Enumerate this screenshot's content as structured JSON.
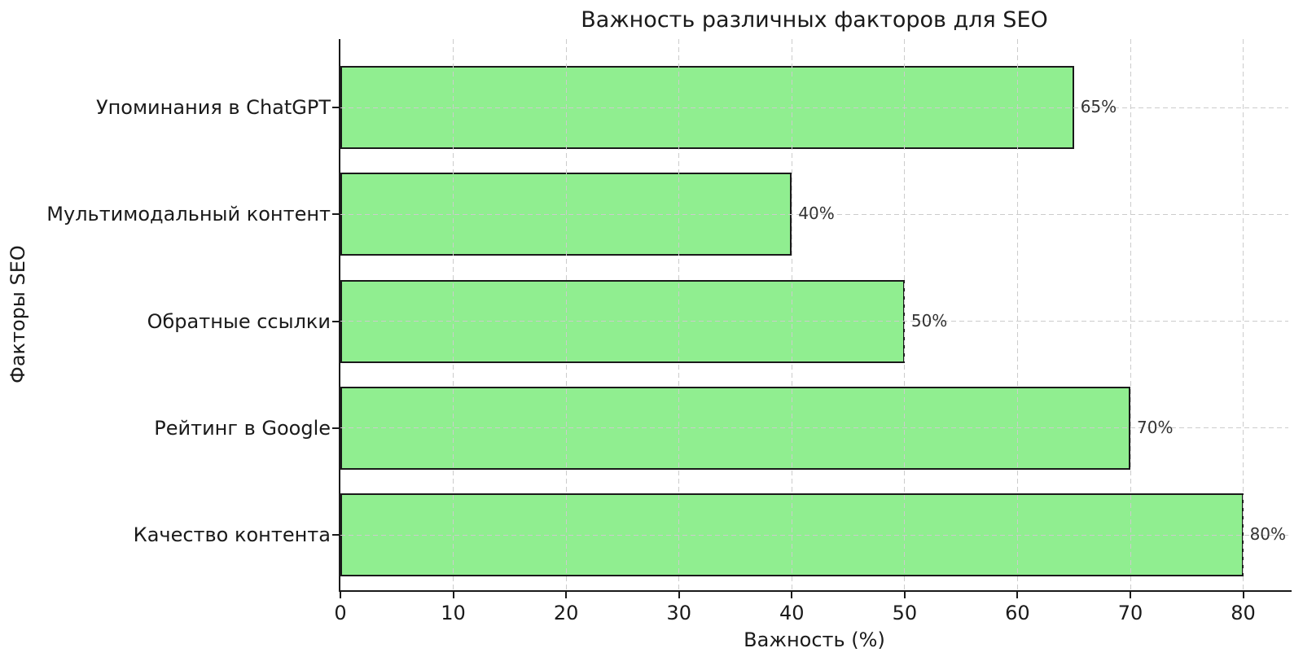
{
  "chart_data": {
    "type": "bar",
    "orientation": "horizontal",
    "title": "Важность различных факторов для SEO",
    "xlabel": "Важность (%)",
    "ylabel": "Факторы SEO",
    "categories": [
      "Упоминания в ChatGPT",
      "Мультимодальный контент",
      "Обратные ссылки",
      "Рейтинг в Google",
      "Качество контента"
    ],
    "values": [
      65,
      40,
      50,
      70,
      80
    ],
    "value_labels": [
      "65%",
      "40%",
      "50%",
      "70%",
      "80%"
    ],
    "xticks": [
      0,
      10,
      20,
      30,
      40,
      50,
      60,
      70,
      80
    ],
    "xtick_labels": [
      "0",
      "10",
      "20",
      "30",
      "40",
      "50",
      "60",
      "70",
      "80"
    ],
    "xlim": [
      0,
      84
    ],
    "grid": "dashed",
    "legend": "none",
    "bar_color": "#90ee90",
    "bar_edge_color": "#1a1a1a",
    "grid_color": "#cccccc",
    "spine_color": "#1a1a1a"
  }
}
